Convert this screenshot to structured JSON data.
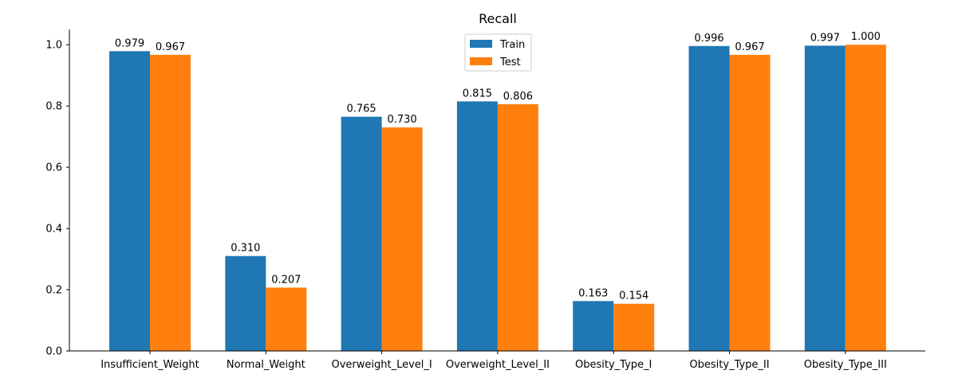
{
  "chart_data": {
    "type": "bar",
    "title": "Recall",
    "xlabel": "",
    "ylabel": "",
    "categories": [
      "Insufficient_Weight",
      "Normal_Weight",
      "Overweight_Level_I",
      "Overweight_Level_II",
      "Obesity_Type_I",
      "Obesity_Type_II",
      "Obesity_Type_III"
    ],
    "series": [
      {
        "name": "Train",
        "color": "#1f77b4",
        "values": [
          0.979,
          0.31,
          0.765,
          0.815,
          0.163,
          0.996,
          0.997
        ],
        "labels": [
          "0.979",
          "0.310",
          "0.765",
          "0.815",
          "0.163",
          "0.996",
          "0.997"
        ]
      },
      {
        "name": "Test",
        "color": "#ff7f0e",
        "values": [
          0.967,
          0.207,
          0.73,
          0.806,
          0.154,
          0.967,
          1.0
        ],
        "labels": [
          "0.967",
          "0.207",
          "0.730",
          "0.806",
          "0.154",
          "0.967",
          "1.000"
        ]
      }
    ],
    "ylim": [
      0,
      1.05
    ],
    "yticks": [
      0.0,
      0.2,
      0.4,
      0.6,
      0.8,
      1.0
    ],
    "ytick_labels": [
      "0.0",
      "0.2",
      "0.4",
      "0.6",
      "0.8",
      "1.0"
    ],
    "legend": {
      "position": "top-center"
    },
    "grid": false
  }
}
